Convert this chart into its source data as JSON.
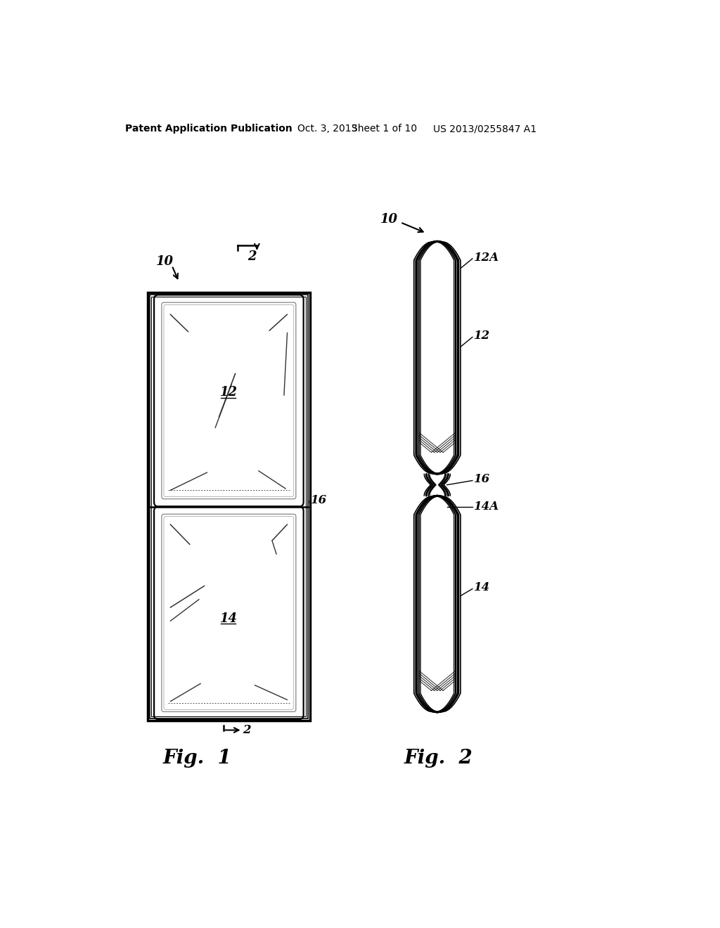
{
  "background_color": "#ffffff",
  "header_text": "Patent Application Publication",
  "header_date": "Oct. 3, 2013",
  "header_sheet": "Sheet 1 of 10",
  "header_patent": "US 2013/0255847 A1",
  "fig1_label": "Fig.  1",
  "fig2_label": "Fig.  2",
  "label_10a": "10",
  "label_10b": "10",
  "label_2a": "2",
  "label_2b": "2",
  "label_12": "12",
  "label_14": "14",
  "label_16a": "16",
  "label_12A": "12A",
  "label_14A": "14A",
  "label_16b": "16"
}
